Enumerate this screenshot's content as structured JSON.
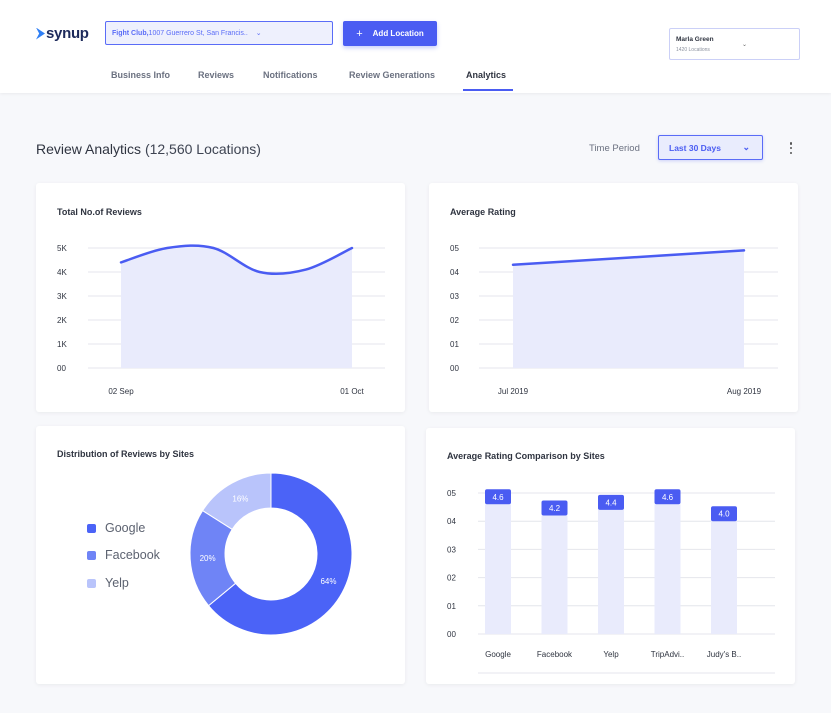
{
  "header": {
    "logo_text": "synup",
    "location": {
      "name": "Fight Club,",
      "address": " 1007 Guerrero St, San Francis..",
      "chevron": "⌄"
    },
    "add_location": {
      "icon": "+",
      "label": "Add Location"
    },
    "user": {
      "name": "Marla Green",
      "sub": "1420 Locations",
      "chevron": "⌄"
    },
    "tabs": [
      {
        "label": "Business Info"
      },
      {
        "label": "Reviews"
      },
      {
        "label": "Notifications"
      },
      {
        "label": "Review Generations"
      },
      {
        "label": "Analytics"
      }
    ],
    "active_tab": "Analytics"
  },
  "page": {
    "title": "Review Analytics",
    "count": "(12,560 Locations)",
    "time_period_label": "Time Period",
    "time_period_value": "Last 30 Days"
  },
  "colors": {
    "accent": "#4a5cf2",
    "area_fill": "#e9ebfc",
    "donut_google": "#4b63f7",
    "donut_facebook": "#6f84f6",
    "donut_yelp": "#b9c4fb"
  },
  "chart_data": [
    {
      "type": "area",
      "title": "Total No.of Reviews",
      "y_ticks": [
        "00",
        "1K",
        "2K",
        "3K",
        "4K",
        "5K"
      ],
      "x_tick_labels": [
        "02 Sep",
        "01 Oct"
      ],
      "ylim": [
        0,
        5000
      ],
      "series": [
        {
          "x": [
            "02 Sep",
            "",
            "",
            "",
            "",
            "01 Oct"
          ],
          "values": [
            4400,
            5000,
            5000,
            4000,
            4100,
            5000
          ]
        }
      ]
    },
    {
      "type": "area",
      "title": "Average Rating",
      "y_ticks": [
        "00",
        "01",
        "02",
        "03",
        "04",
        "05"
      ],
      "x_tick_labels": [
        "Jul 2019",
        "Aug 2019"
      ],
      "ylim": [
        0,
        5
      ],
      "series": [
        {
          "x": [
            "Jul 2019",
            "Aug 2019"
          ],
          "values": [
            4.3,
            4.9
          ]
        }
      ]
    },
    {
      "type": "pie",
      "title": "Distribution of Reviews by Sites",
      "labels": [
        "Google",
        "Facebook",
        "Yelp"
      ],
      "values": [
        64,
        20,
        16
      ],
      "value_labels": [
        "64%",
        "20%",
        "16%"
      ]
    },
    {
      "type": "bar",
      "title": "Average Rating Comparison by Sites",
      "categories": [
        "Google",
        "Facebook",
        "Yelp",
        "TripAdvi..",
        "Judy's B.."
      ],
      "values": [
        4.6,
        4.2,
        4.4,
        4.6,
        4.0
      ],
      "value_labels": [
        "4.6",
        "4.2",
        "4.4",
        "4.6",
        "4.0"
      ],
      "y_ticks": [
        "00",
        "01",
        "02",
        "03",
        "04",
        "05"
      ],
      "ylim": [
        0,
        5
      ]
    }
  ]
}
